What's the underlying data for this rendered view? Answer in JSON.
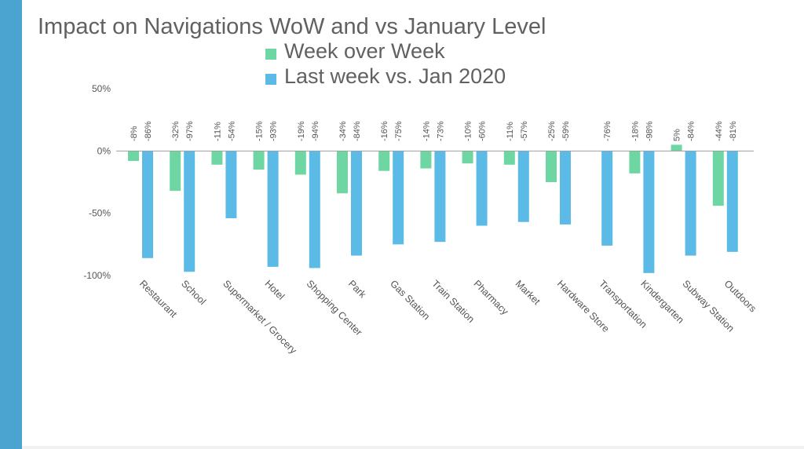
{
  "colors": {
    "sidebar": "#4ba3cf",
    "wow": "#6ed6a3",
    "jan": "#5bbbe6",
    "axis": "#555555"
  },
  "chart_data": {
    "type": "bar",
    "title": "Impact on Navigations WoW and vs January Level",
    "categories": [
      "Restaurant",
      "School",
      "Supermarket / Grocery",
      "Hotel",
      "Shopping Center",
      "Park",
      "Gas Station",
      "Train Station",
      "Pharmacy",
      "Market",
      "Hardware Store",
      "Transportation",
      "Kindergarten",
      "Subway Station",
      "Outdoors"
    ],
    "series": [
      {
        "name": "Week over Week",
        "values": [
          -8,
          -32,
          -11,
          -15,
          -19,
          -34,
          -16,
          -14,
          -10,
          -11,
          -25,
          null,
          -18,
          5,
          -44
        ],
        "labels": [
          "-8%",
          "-32%",
          "-11%",
          "-15%",
          "-19%",
          "-34%",
          "-16%",
          "-14%",
          "-10%",
          "-11%",
          "-25%",
          "",
          "-18%",
          "5%",
          "-44%"
        ]
      },
      {
        "name": "Last week vs. Jan 2020",
        "values": [
          -86,
          -97,
          -54,
          -93,
          -94,
          -84,
          -75,
          -73,
          -60,
          -57,
          -59,
          -76,
          -98,
          -84,
          -81
        ],
        "labels": [
          "-86%",
          "-97%",
          "-54%",
          "-93%",
          "-94%",
          "-84%",
          "-75%",
          "-73%",
          "-60%",
          "-57%",
          "-59%",
          "-76%",
          "-98%",
          "-84%",
          "-81%"
        ]
      }
    ],
    "ylim": [
      -100,
      50
    ],
    "yticks": [
      50,
      0,
      -50,
      -100
    ],
    "ytick_labels": [
      "50%",
      "0%",
      "-50%",
      "-100%"
    ],
    "legend_position": "top-center",
    "grid": false
  }
}
